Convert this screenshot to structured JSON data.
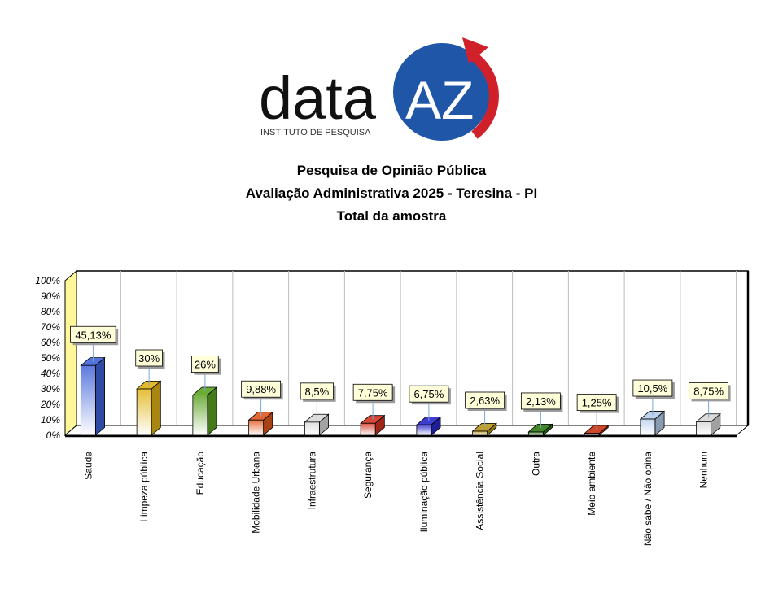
{
  "logo": {
    "brand_text": "data",
    "brand_mark": "AZ",
    "tagline": "INSTITUTO DE PESQUISA",
    "colors": {
      "text": "#111111",
      "globe": "#1f56a8",
      "arrow": "#d0202a"
    }
  },
  "header": {
    "line1": "Pesquisa de Opinião Pública",
    "line2": "Avaliação Administrativa 2025 - Teresina - PI",
    "line3": "Total da amostra"
  },
  "chart_data": {
    "type": "bar",
    "title": "",
    "xlabel": "",
    "ylabel": "",
    "ylim": [
      0,
      100
    ],
    "yticks": [
      "0%",
      "10%",
      "20%",
      "30%",
      "40%",
      "50%",
      "60%",
      "70%",
      "80%",
      "90%",
      "100%"
    ],
    "grid": true,
    "legend": "none",
    "categories": [
      "Saúde",
      "Limpeza pública",
      "Educação",
      "Mobilidade Urbana",
      "Infraestrutura",
      "Segurança",
      "Iluminação pública",
      "Assistência Social",
      "Outra",
      "Meio ambiente",
      "Não sabe / Não opina",
      "Nenhum"
    ],
    "values": [
      45.13,
      30,
      26,
      9.88,
      8.5,
      7.75,
      6.75,
      2.63,
      2.13,
      1.25,
      10.5,
      8.75
    ],
    "labels": [
      "45,13%",
      "30%",
      "26%",
      "9,88%",
      "8,5%",
      "7,75%",
      "6,75%",
      "2,63%",
      "2,13%",
      "1,25%",
      "10,5%",
      "8,75%"
    ],
    "colors": [
      "#3f63d8",
      "#e0b214",
      "#5aa321",
      "#e0561b",
      "#d9d9d9",
      "#d5341f",
      "#2828c8",
      "#b8961c",
      "#2f7a12",
      "#c8320f",
      "#b7cdec",
      "#d6d6d6"
    ]
  }
}
